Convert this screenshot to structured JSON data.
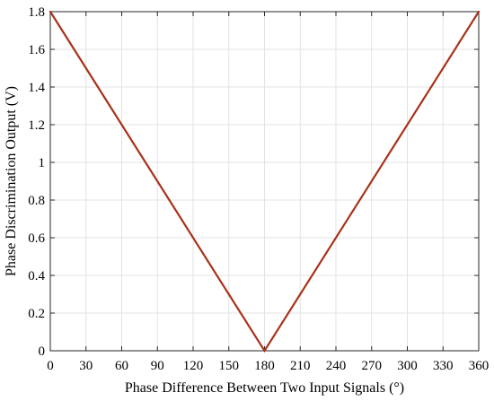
{
  "chart_data": {
    "type": "line",
    "title": "",
    "xlabel": "Phase Difference Between Two Input Signals (°)",
    "ylabel": "Phase Discrimination Output (V)",
    "xlim": [
      0,
      360
    ],
    "ylim": [
      0,
      1.8
    ],
    "xticks": [
      0,
      30,
      60,
      90,
      120,
      150,
      180,
      210,
      240,
      270,
      300,
      330,
      360
    ],
    "yticks": [
      0,
      0.2,
      0.4,
      0.6,
      0.8,
      1,
      1.2,
      1.4,
      1.6,
      1.8
    ],
    "xtick_labels": [
      "0",
      "30",
      "60",
      "90",
      "120",
      "150",
      "180",
      "210",
      "240",
      "270",
      "300",
      "330",
      "360"
    ],
    "ytick_labels": [
      "0",
      "0.2",
      "0.4",
      "0.6",
      "0.8",
      "1",
      "1.2",
      "1.4",
      "1.6",
      "1.8"
    ],
    "grid": true,
    "series": [
      {
        "x": [
          0,
          180,
          360
        ],
        "y": [
          1.8,
          0,
          1.8
        ],
        "color": "#a8321c"
      }
    ]
  }
}
